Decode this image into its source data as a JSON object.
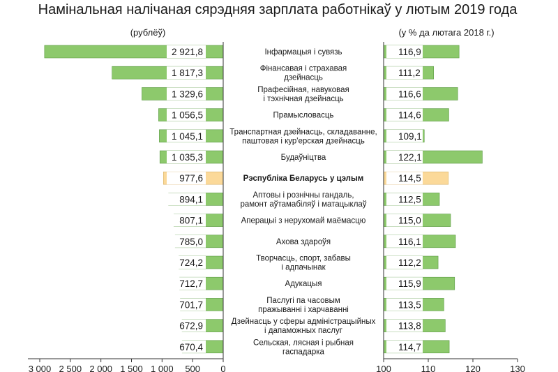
{
  "title": "Намінальная налічаная сярэдняя зарплата работнікаў у лютым 2019 года",
  "colors": {
    "bar": "#8dc96c",
    "bar_stroke": "#5a9a43",
    "highlight": "#fbd999",
    "highlight_stroke": "#d9b36a",
    "box": "#ffffff",
    "axis": "#333333"
  },
  "chart_data": [
    {
      "type": "bar",
      "orientation": "horizontal",
      "direction": "right-to-left",
      "unit_label": "(рублёў)",
      "categories": [
        "Інфармацыя і сувязь",
        "Фінансавая і страхавая дзейнасць",
        "Прафесійная, навуковая і тэхнічная дзейнасць",
        "Прамысловасць",
        "Транспартная дзейнасць, складаванне, паштовая і кур'ерская дзейнасць",
        "Будаўніцтва",
        "Рэспубліка Беларусь у цэлым",
        "Аптовы і рознічны гандаль, рамонт аўтамабіляў і матацыклаў",
        "Аперацыі з нерухомай маёмасцю",
        "Ахова здароўя",
        "Творчасць, спорт, забавы і адпачынак",
        "Адукацыя",
        "Паслугі па часовым пражыванні і харчаванні",
        "Дзейнасць у сферы адміністрацыйных і дапаможных паслуг",
        "Сельская, лясная і рыбная гаспадарка"
      ],
      "values": [
        2921.8,
        1817.3,
        1329.6,
        1056.5,
        1045.1,
        1035.3,
        977.6,
        894.1,
        807.1,
        785.0,
        724.2,
        712.7,
        701.7,
        672.9,
        670.4
      ],
      "value_labels": [
        "2 921,8",
        "1 817,3",
        "1 329,6",
        "1 056,5",
        "1 045,1",
        "1 035,3",
        "977,6",
        "894,1",
        "807,1",
        "785,0",
        "724,2",
        "712,7",
        "701,7",
        "672,9",
        "670,4"
      ],
      "highlight_index": 6,
      "xlim": [
        0,
        3000
      ],
      "ticks": [
        3000,
        2500,
        2000,
        1500,
        1000,
        500,
        0
      ],
      "tick_labels": [
        "3 000",
        "2 500",
        "2 000",
        "1 500",
        "1 000",
        "500",
        "0"
      ]
    },
    {
      "type": "bar",
      "orientation": "horizontal",
      "direction": "left-to-right",
      "unit_label": "(у % да лютага 2018 г.)",
      "categories_ref": "same as left chart",
      "values": [
        116.9,
        111.2,
        116.6,
        114.6,
        109.1,
        122.1,
        114.5,
        112.5,
        115.0,
        116.1,
        112.2,
        115.9,
        113.5,
        113.8,
        114.7
      ],
      "value_labels": [
        "116,9",
        "111,2",
        "116,6",
        "114,6",
        "109,1",
        "122,1",
        "114,5",
        "112,5",
        "115,0",
        "116,1",
        "112,2",
        "115,9",
        "113,5",
        "113,8",
        "114,7"
      ],
      "highlight_index": 6,
      "xlim": [
        100,
        130
      ],
      "ticks": [
        100,
        110,
        120,
        130
      ],
      "tick_labels": [
        "100",
        "110",
        "120",
        "130"
      ]
    }
  ],
  "category_lines": [
    [
      "Інфармацыя і сувязь"
    ],
    [
      "Фінансавая і страхавая",
      "дзейнасць"
    ],
    [
      "Прафесійная, навуковая",
      "і тэхнічная дзейнасць"
    ],
    [
      "Прамысловасць"
    ],
    [
      "Транспартная дзейнасць, складаванне,",
      "паштовая і кур'ерская дзейнасць"
    ],
    [
      "Будаўніцтва"
    ],
    [
      "Рэспубліка Беларусь у цэлым"
    ],
    [
      "Аптовы і рознічны гандаль,",
      "рамонт аўтамабіляў і матацыклаў"
    ],
    [
      "Аперацыі з нерухомай маёмасцю"
    ],
    [
      "Ахова здароўя"
    ],
    [
      "Творчасць, спорт, забавы",
      "і адпачынак"
    ],
    [
      "Адукацыя"
    ],
    [
      "Паслугі па часовым",
      "пражыванні і харчаванні"
    ],
    [
      "Дзейнасць у сферы адміністрацыйных",
      "і дапаможных паслуг"
    ],
    [
      "Сельская, лясная і рыбная",
      "гаспадарка"
    ]
  ]
}
